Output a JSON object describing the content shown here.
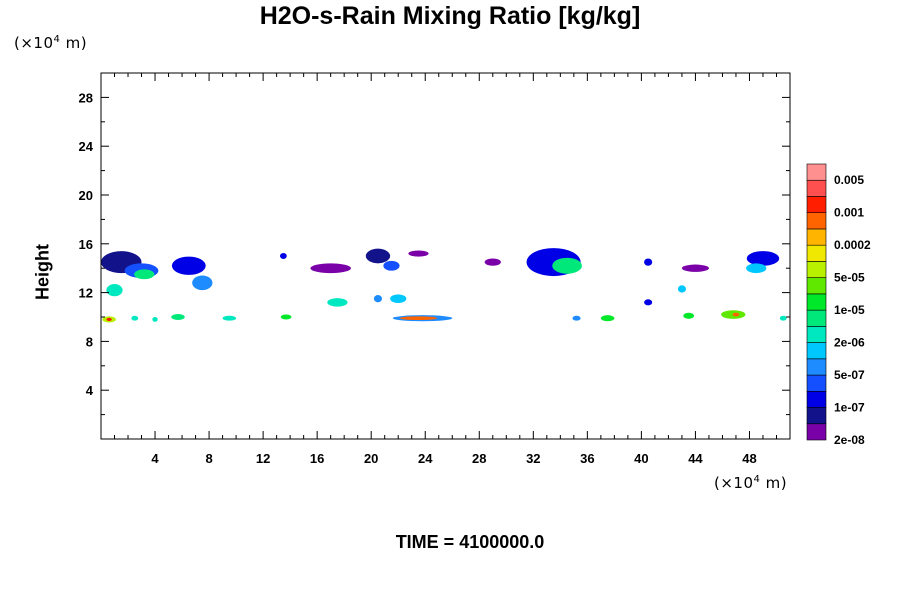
{
  "chart_data": {
    "type": "heatmap",
    "title": "H2O-s-Rain Mixing Ratio [kg/kg]",
    "ylabel": "Height",
    "xlabel": "",
    "y_unit": "(×10⁴ m)",
    "x_unit": "(×10⁴ m)",
    "unit_prefix": "(×10",
    "unit_exp": "4",
    "unit_suffix": " m)",
    "footer": "TIME = 4100000.0",
    "xlim": [
      0,
      51
    ],
    "ylim": [
      0,
      30
    ],
    "x_ticks": [
      4,
      8,
      12,
      16,
      20,
      24,
      28,
      32,
      36,
      40,
      44,
      48
    ],
    "y_ticks": [
      4,
      8,
      12,
      16,
      20,
      24,
      28
    ],
    "colorbar": {
      "labels": [
        "0.005",
        "0.001",
        "0.0002",
        "5e-05",
        "1e-05",
        "2e-06",
        "5e-07",
        "1e-07",
        "2e-08"
      ],
      "colors": [
        "#7a00a8",
        "#12128a",
        "#0000e6",
        "#1450ff",
        "#1e8cff",
        "#00c8ff",
        "#00e8c0",
        "#00e87a",
        "#00e82a",
        "#60e800",
        "#b8f000",
        "#f0e800",
        "#ffb400",
        "#ff6400",
        "#ff1e00",
        "#ff5050",
        "#ff9090"
      ]
    },
    "cells": [
      {
        "x": 1.5,
        "y": 14.5,
        "w": 3.0,
        "h": 1.8,
        "level": 1
      },
      {
        "x": 3.0,
        "y": 13.8,
        "w": 2.5,
        "h": 1.2,
        "level": 3
      },
      {
        "x": 3.2,
        "y": 13.5,
        "w": 1.5,
        "h": 0.8,
        "level": 7
      },
      {
        "x": 6.5,
        "y": 14.2,
        "w": 2.5,
        "h": 1.5,
        "level": 2
      },
      {
        "x": 7.5,
        "y": 12.8,
        "w": 1.5,
        "h": 1.2,
        "level": 4
      },
      {
        "x": 1.0,
        "y": 12.2,
        "w": 1.2,
        "h": 1.0,
        "level": 6
      },
      {
        "x": 13.5,
        "y": 15.0,
        "w": 0.5,
        "h": 0.5,
        "level": 2
      },
      {
        "x": 17.0,
        "y": 14.0,
        "w": 3.0,
        "h": 0.8,
        "level": 0
      },
      {
        "x": 20.5,
        "y": 15.0,
        "w": 1.8,
        "h": 1.2,
        "level": 1
      },
      {
        "x": 21.5,
        "y": 14.2,
        "w": 1.2,
        "h": 0.8,
        "level": 3
      },
      {
        "x": 23.5,
        "y": 15.2,
        "w": 1.5,
        "h": 0.5,
        "level": 0
      },
      {
        "x": 33.5,
        "y": 14.5,
        "w": 4.0,
        "h": 2.3,
        "level": 2
      },
      {
        "x": 34.5,
        "y": 14.2,
        "w": 2.2,
        "h": 1.3,
        "level": 7
      },
      {
        "x": 29.0,
        "y": 14.5,
        "w": 1.2,
        "h": 0.6,
        "level": 0
      },
      {
        "x": 40.5,
        "y": 14.5,
        "w": 0.6,
        "h": 0.6,
        "level": 2
      },
      {
        "x": 44.0,
        "y": 14.0,
        "w": 2.0,
        "h": 0.6,
        "level": 0
      },
      {
        "x": 49.0,
        "y": 14.8,
        "w": 2.4,
        "h": 1.2,
        "level": 2
      },
      {
        "x": 48.5,
        "y": 14.0,
        "w": 1.5,
        "h": 0.8,
        "level": 5
      },
      {
        "x": 17.5,
        "y": 11.2,
        "w": 1.5,
        "h": 0.7,
        "level": 6
      },
      {
        "x": 20.5,
        "y": 11.5,
        "w": 0.6,
        "h": 0.6,
        "level": 4
      },
      {
        "x": 22.0,
        "y": 11.5,
        "w": 1.2,
        "h": 0.7,
        "level": 5
      },
      {
        "x": 23.8,
        "y": 9.9,
        "w": 4.4,
        "h": 0.5,
        "level": 4
      },
      {
        "x": 23.5,
        "y": 9.9,
        "w": 2.8,
        "h": 0.3,
        "level": 13
      },
      {
        "x": 0.6,
        "y": 9.8,
        "w": 1.0,
        "h": 0.5,
        "level": 10
      },
      {
        "x": 0.6,
        "y": 9.8,
        "w": 0.4,
        "h": 0.25,
        "level": 14
      },
      {
        "x": 2.5,
        "y": 9.9,
        "w": 0.5,
        "h": 0.4,
        "level": 6
      },
      {
        "x": 4.0,
        "y": 9.8,
        "w": 0.4,
        "h": 0.4,
        "level": 6
      },
      {
        "x": 5.7,
        "y": 10.0,
        "w": 1.0,
        "h": 0.5,
        "level": 7
      },
      {
        "x": 9.5,
        "y": 9.9,
        "w": 1.0,
        "h": 0.4,
        "level": 6
      },
      {
        "x": 13.7,
        "y": 10.0,
        "w": 0.8,
        "h": 0.4,
        "level": 8
      },
      {
        "x": 35.2,
        "y": 9.9,
        "w": 0.6,
        "h": 0.4,
        "level": 4
      },
      {
        "x": 37.5,
        "y": 9.9,
        "w": 1.0,
        "h": 0.5,
        "level": 8
      },
      {
        "x": 40.5,
        "y": 11.2,
        "w": 0.6,
        "h": 0.5,
        "level": 2
      },
      {
        "x": 43.0,
        "y": 12.3,
        "w": 0.6,
        "h": 0.6,
        "level": 5
      },
      {
        "x": 43.5,
        "y": 10.1,
        "w": 0.8,
        "h": 0.5,
        "level": 8
      },
      {
        "x": 46.8,
        "y": 10.2,
        "w": 1.8,
        "h": 0.7,
        "level": 9
      },
      {
        "x": 47.0,
        "y": 10.2,
        "w": 0.5,
        "h": 0.3,
        "level": 13
      },
      {
        "x": 50.5,
        "y": 9.9,
        "w": 0.5,
        "h": 0.4,
        "level": 6
      }
    ]
  }
}
